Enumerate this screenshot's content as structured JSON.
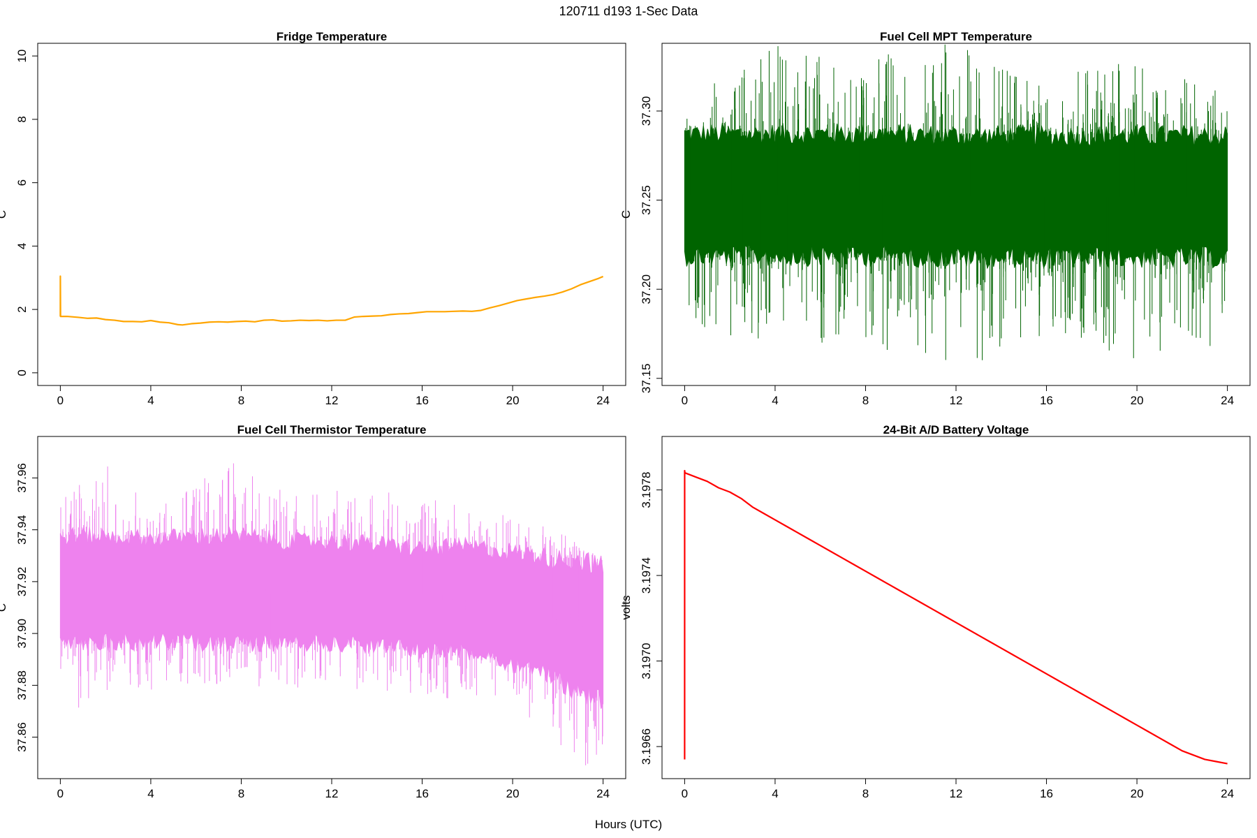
{
  "figure": {
    "title": "120711   d193   1-Sec Data",
    "xlabel": "Hours (UTC)"
  },
  "chart_data": [
    {
      "id": "fridge",
      "type": "line",
      "title": "Fridge Temperature",
      "xlabel": "",
      "ylabel": "C",
      "xlim": [
        -1,
        25
      ],
      "ylim": [
        -0.4,
        10.4
      ],
      "xticks": [
        0,
        4,
        8,
        12,
        16,
        20,
        24
      ],
      "yticks": [
        0,
        2,
        4,
        6,
        8,
        10
      ],
      "ytick_labels": [
        "0",
        "2",
        "4",
        "6",
        "8",
        "10"
      ],
      "color": "#FFA500",
      "style": "smooth",
      "series": [
        {
          "x": [
            0,
            0.001,
            0.01,
            0.3,
            0.8,
            1.2,
            1.6,
            2.0,
            2.4,
            2.8,
            3.2,
            3.6,
            4.0,
            4.4,
            4.8,
            5.2,
            5.4,
            5.8,
            6.2,
            6.6,
            7.0,
            7.4,
            7.8,
            8.2,
            8.6,
            9.0,
            9.4,
            9.8,
            10.2,
            10.6,
            11.0,
            11.4,
            11.8,
            12.2,
            12.6,
            13.0,
            13.4,
            13.8,
            14.2,
            14.6,
            15.0,
            15.4,
            15.8,
            16.2,
            16.6,
            17.0,
            17.4,
            17.8,
            18.2,
            18.6,
            19.0,
            19.4,
            19.8,
            20.2,
            20.6,
            21.0,
            21.4,
            21.8,
            22.2,
            22.6,
            23.0,
            23.4,
            23.8,
            24.0
          ],
          "y": [
            1.78,
            3.05,
            1.78,
            1.78,
            1.75,
            1.72,
            1.73,
            1.68,
            1.66,
            1.62,
            1.62,
            1.61,
            1.65,
            1.6,
            1.58,
            1.52,
            1.51,
            1.55,
            1.57,
            1.6,
            1.61,
            1.6,
            1.62,
            1.63,
            1.61,
            1.66,
            1.67,
            1.63,
            1.64,
            1.66,
            1.65,
            1.66,
            1.64,
            1.66,
            1.66,
            1.76,
            1.78,
            1.79,
            1.8,
            1.84,
            1.86,
            1.87,
            1.9,
            1.93,
            1.93,
            1.93,
            1.94,
            1.95,
            1.94,
            1.97,
            2.05,
            2.12,
            2.2,
            2.28,
            2.33,
            2.38,
            2.42,
            2.47,
            2.55,
            2.65,
            2.78,
            2.88,
            2.98,
            3.04
          ]
        }
      ]
    },
    {
      "id": "mpt",
      "type": "line",
      "title": "Fuel Cell MPT Temperature",
      "xlabel": "",
      "ylabel": "C",
      "xlim": [
        -1,
        25
      ],
      "ylim": [
        37.146,
        37.338
      ],
      "xticks": [
        0,
        4,
        8,
        12,
        16,
        20,
        24
      ],
      "yticks": [
        37.15,
        37.2,
        37.25,
        37.3
      ],
      "ytick_labels": [
        "37.15",
        "37.20",
        "37.25",
        "37.30"
      ],
      "color": "#006400",
      "style": "noise",
      "series": [
        {
          "x": [
            0,
            4,
            8,
            12,
            16,
            20,
            24
          ],
          "y_center": [
            37.253,
            37.253,
            37.253,
            37.252,
            37.252,
            37.252,
            37.252
          ],
          "y_core_halfwidth": [
            0.035,
            0.035,
            0.035,
            0.035,
            0.035,
            0.035,
            0.035
          ],
          "y_max": [
            37.31,
            37.337,
            37.33,
            37.339,
            37.32,
            37.33,
            37.31
          ],
          "y_min": [
            37.176,
            37.17,
            37.17,
            37.153,
            37.175,
            37.16,
            37.166
          ]
        }
      ]
    },
    {
      "id": "thermistor",
      "type": "line",
      "title": "Fuel Cell Thermistor Temperature",
      "xlabel": "",
      "ylabel": "C",
      "xlim": [
        -1,
        25
      ],
      "ylim": [
        37.844,
        37.976
      ],
      "xticks": [
        0,
        4,
        8,
        12,
        16,
        20,
        24
      ],
      "yticks": [
        37.86,
        37.88,
        37.9,
        37.92,
        37.94,
        37.96
      ],
      "ytick_labels": [
        "37.86",
        "37.88",
        "37.90",
        "37.92",
        "37.94",
        "37.96"
      ],
      "color": "#EE82EE",
      "style": "noise",
      "series": [
        {
          "x": [
            0,
            2,
            4,
            6,
            8,
            10,
            12,
            14,
            16,
            18,
            19,
            20,
            21,
            22,
            23,
            24
          ],
          "y_center": [
            37.917,
            37.917,
            37.917,
            37.917,
            37.917,
            37.916,
            37.916,
            37.915,
            37.913,
            37.913,
            37.912,
            37.91,
            37.909,
            37.905,
            37.903,
            37.9
          ],
          "y_core_halfwidth": [
            0.021,
            0.021,
            0.02,
            0.021,
            0.021,
            0.02,
            0.02,
            0.02,
            0.02,
            0.021,
            0.021,
            0.022,
            0.022,
            0.024,
            0.026,
            0.026
          ],
          "y_max": [
            37.955,
            37.965,
            37.955,
            37.958,
            37.968,
            37.955,
            37.955,
            37.956,
            37.953,
            37.95,
            37.948,
            37.945,
            37.942,
            37.94,
            37.935,
            37.928
          ],
          "y_min": [
            37.868,
            37.876,
            37.878,
            37.88,
            37.88,
            37.879,
            37.878,
            37.878,
            37.876,
            37.874,
            37.87,
            37.868,
            37.86,
            37.856,
            37.846,
            37.85
          ]
        }
      ]
    },
    {
      "id": "battery",
      "type": "line",
      "title": "24-Bit A/D Battery Voltage",
      "xlabel": "",
      "ylabel": "volts",
      "xlim": [
        -1,
        25
      ],
      "ylim": [
        3.19645,
        3.19805
      ],
      "xticks": [
        0,
        4,
        8,
        12,
        16,
        20,
        24
      ],
      "yticks": [
        3.1966,
        3.197,
        3.1974,
        3.1978
      ],
      "ytick_labels": [
        "3.1966",
        "3.1970",
        "3.1974",
        "3.1978"
      ],
      "color": "#FF0000",
      "style": "smooth",
      "series": [
        {
          "x": [
            0,
            0.001,
            0.01,
            0.5,
            1.0,
            1.5,
            2.0,
            2.5,
            3.0,
            3.5,
            4.0,
            4.5,
            5.0,
            5.5,
            6.0,
            6.5,
            7.0,
            7.5,
            8.0,
            8.5,
            9.0,
            9.5,
            10.0,
            10.5,
            11.0,
            11.5,
            12.0,
            12.5,
            13.0,
            13.5,
            14.0,
            14.5,
            15.0,
            15.5,
            16.0,
            16.5,
            17.0,
            17.5,
            18.0,
            18.5,
            19.0,
            19.5,
            20.0,
            20.5,
            21.0,
            21.5,
            22.0,
            22.5,
            23.0,
            23.5,
            24.0
          ],
          "y": [
            3.19654,
            3.19789,
            3.19788,
            3.19786,
            3.19784,
            3.19781,
            3.19779,
            3.19776,
            3.19772,
            3.19769,
            3.19766,
            3.19763,
            3.1976,
            3.19757,
            3.19754,
            3.19751,
            3.19748,
            3.19745,
            3.19742,
            3.19739,
            3.19736,
            3.19733,
            3.1973,
            3.19727,
            3.19724,
            3.19721,
            3.19718,
            3.19715,
            3.19712,
            3.19709,
            3.19706,
            3.19703,
            3.197,
            3.19697,
            3.19694,
            3.19691,
            3.19688,
            3.19685,
            3.19682,
            3.19679,
            3.19676,
            3.19673,
            3.1967,
            3.19667,
            3.19664,
            3.19661,
            3.19658,
            3.19656,
            3.19654,
            3.19653,
            3.19652
          ]
        }
      ]
    }
  ]
}
